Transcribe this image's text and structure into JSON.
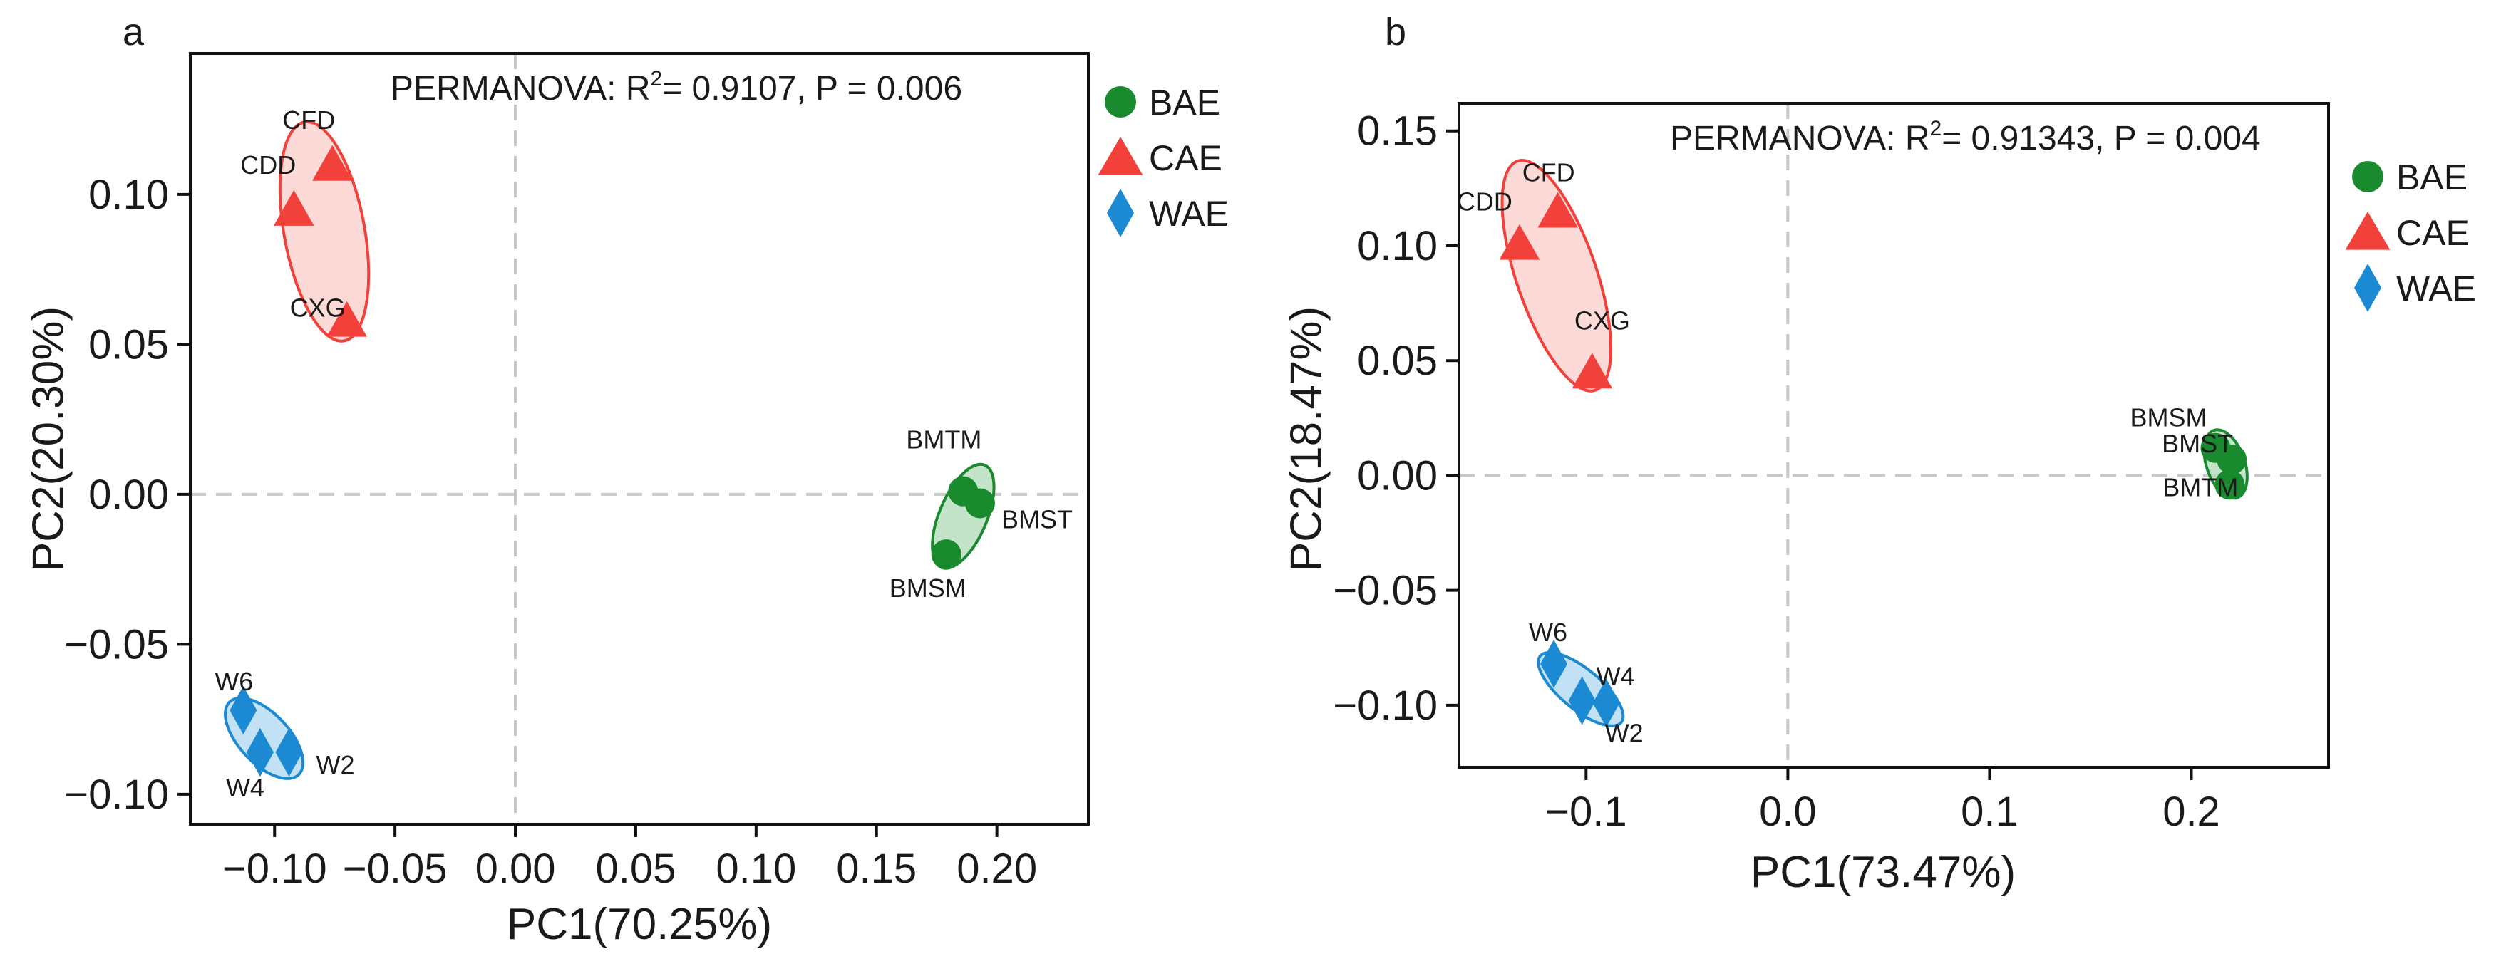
{
  "chart_data": [
    {
      "type": "scatter",
      "panel_label": "a",
      "stat_text": {
        "prefix": "PERMANOVA: R",
        "sup": "2",
        "suffix": "= 0.9107, P = 0.006"
      },
      "xlabel": "PC1(70.25%)",
      "ylabel": "PC2(20.30%)",
      "xlim": [
        -0.135,
        0.238
      ],
      "ylim": [
        -0.11,
        0.147
      ],
      "xticks": [
        -0.1,
        -0.05,
        0.0,
        0.05,
        0.1,
        0.15,
        0.2
      ],
      "xtick_labels": [
        "−0.10",
        "−0.05",
        "0.00",
        "0.05",
        "0.10",
        "0.15",
        "0.20"
      ],
      "yticks": [
        -0.1,
        -0.05,
        0.0,
        0.05,
        0.1
      ],
      "ytick_labels": [
        "−0.10",
        "−0.05",
        "0.00",
        "0.05",
        "0.10"
      ],
      "zero_lines": true,
      "legend_position": "right",
      "series": [
        {
          "name": "BAE",
          "color": "#1a8a2e",
          "fill": "#b8dfbf",
          "marker": "circle",
          "points": [
            {
              "label": "BMTM",
              "x": 0.186,
              "y": 0.001
            },
            {
              "label": "BMST",
              "x": 0.193,
              "y": -0.003
            },
            {
              "label": "BMSM",
              "x": 0.179,
              "y": -0.02
            }
          ]
        },
        {
          "name": "CAE",
          "color": "#f2413a",
          "fill": "#fbd3d0",
          "marker": "triangle",
          "points": [
            {
              "label": "CFD",
              "x": -0.076,
              "y": 0.11
            },
            {
              "label": "CDD",
              "x": -0.092,
              "y": 0.095
            },
            {
              "label": "CXG",
              "x": -0.07,
              "y": 0.058
            }
          ]
        },
        {
          "name": "WAE",
          "color": "#1b8ad3",
          "fill": "#b7dcf2",
          "marker": "diamond",
          "points": [
            {
              "label": "W6",
              "x": -0.113,
              "y": -0.072
            },
            {
              "label": "W4",
              "x": -0.106,
              "y": -0.086
            },
            {
              "label": "W2",
              "x": -0.094,
              "y": -0.086
            }
          ]
        }
      ]
    },
    {
      "type": "scatter",
      "panel_label": "b",
      "stat_text": {
        "prefix": "PERMANOVA: R",
        "sup": "2",
        "suffix": "= 0.91343, P = 0.004"
      },
      "xlabel": "PC1(73.47%)",
      "ylabel": "PC2(18.47%)",
      "xlim": [
        -0.163,
        0.268
      ],
      "ylim": [
        -0.127,
        0.162
      ],
      "xticks": [
        -0.1,
        0.0,
        0.1,
        0.2
      ],
      "xtick_labels": [
        "−0.1",
        "0.0",
        "0.1",
        "0.2"
      ],
      "yticks": [
        -0.1,
        -0.05,
        0.0,
        0.05,
        0.1,
        0.15
      ],
      "ytick_labels": [
        "−0.10",
        "−0.05",
        "0.00",
        "0.05",
        "0.10",
        "0.15"
      ],
      "zero_lines": true,
      "legend_position": "right",
      "series": [
        {
          "name": "BAE",
          "color": "#1a8a2e",
          "fill": "#b8dfbf",
          "marker": "circle",
          "points": [
            {
              "label": "BMSM",
              "x": 0.212,
              "y": 0.012
            },
            {
              "label": "BMST",
              "x": 0.22,
              "y": 0.007
            },
            {
              "label": "BMTM",
              "x": 0.219,
              "y": -0.004
            }
          ]
        },
        {
          "name": "CAE",
          "color": "#f2413a",
          "fill": "#fbd3d0",
          "marker": "triangle",
          "points": [
            {
              "label": "CFD",
              "x": -0.114,
              "y": 0.115
            },
            {
              "label": "CDD",
              "x": -0.133,
              "y": 0.101
            },
            {
              "label": "CXG",
              "x": -0.097,
              "y": 0.045
            }
          ]
        },
        {
          "name": "WAE",
          "color": "#1b8ad3",
          "fill": "#b7dcf2",
          "marker": "diamond",
          "points": [
            {
              "label": "W6",
              "x": -0.116,
              "y": -0.082
            },
            {
              "label": "W4",
              "x": -0.102,
              "y": -0.098
            },
            {
              "label": "W2",
              "x": -0.09,
              "y": -0.099
            }
          ]
        }
      ]
    }
  ]
}
